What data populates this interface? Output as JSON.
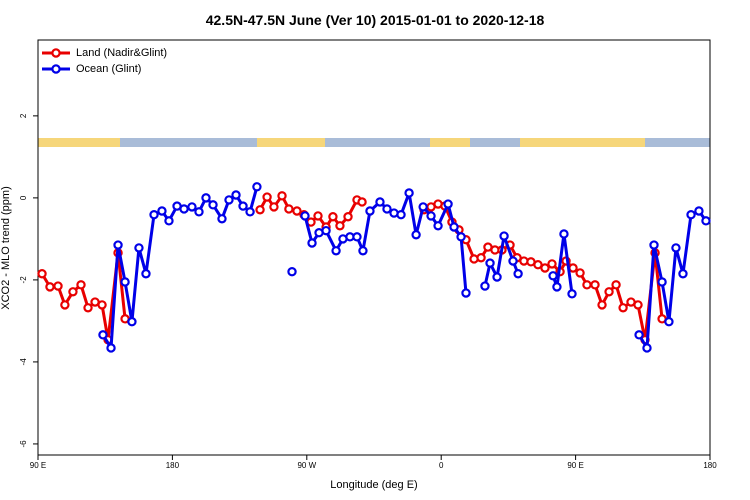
{
  "chart_data": {
    "type": "line",
    "title": "42.5N-47.5N June (Ver 10)   2015-01-01 to 2020-12-18",
    "xlabel": "Longitude (deg E)",
    "ylabel": "XCO2 - MLO trend (ppm)",
    "xlim": [
      90,
      540
    ],
    "ylim": [
      -6.27,
      3.85
    ],
    "xticks": [
      {
        "value": 90,
        "label": "90 E"
      },
      180,
      {
        "value": 270,
        "label": "90 W"
      },
      {
        "value": 360,
        "label": "0"
      },
      {
        "value": 450,
        "label": "90 E"
      },
      {
        "value": 540,
        "label": "180"
      }
    ],
    "yticks": [
      -6,
      -4,
      -2,
      0,
      2
    ],
    "legend": "top-left",
    "series": [
      {
        "name": "Land (Nadir&Glint)",
        "color": "#e80000",
        "x": [
          92.7,
          98,
          103.4,
          108,
          113.4,
          118.8,
          123.5,
          128.2,
          132.9,
          136.9,
          143.6,
          148.3,
          null,
          238.7,
          243.4,
          248,
          253.4,
          258,
          263.4,
          268.1,
          272.8,
          277.5,
          282.9,
          287.5,
          292.2,
          297.6,
          303.6,
          307,
          null,
          348.5,
          353.2,
          357.9,
          362.5,
          367.2,
          371.9,
          376.6,
          382,
          386.7,
          391.3,
          396,
          400.7,
          406.1,
          410.8,
          415.4,
          420.1,
          424.8,
          429.5,
          434.2,
          439.6,
          443.6,
          448.3,
          453,
          457.6,
          463,
          467.7,
          472.4,
          477.1,
          481.8,
          487.1,
          491.8,
          496.5,
          503.2,
          507.9
        ],
        "values": [
          -1.85,
          -2.17,
          -2.15,
          -2.61,
          -2.29,
          -2.12,
          -2.68,
          -2.54,
          -2.61,
          -3.46,
          -1.34,
          -2.95,
          null,
          -0.29,
          0.02,
          -0.22,
          0.05,
          -0.27,
          -0.32,
          -0.41,
          -0.59,
          -0.44,
          -0.71,
          -0.46,
          -0.68,
          -0.46,
          -0.05,
          -0.1,
          null,
          -0.29,
          -0.22,
          -0.15,
          -0.2,
          -0.59,
          -0.78,
          -1.02,
          -1.49,
          -1.46,
          -1.2,
          -1.27,
          -1.27,
          -1.15,
          -1.46,
          -1.54,
          -1.56,
          -1.63,
          -1.71,
          -1.61,
          -1.8,
          -1.54,
          -1.71,
          -1.83,
          -2.12,
          -2.12,
          -2.61,
          -2.29,
          -2.12,
          -2.68,
          -2.54,
          -2.61,
          -3.46,
          -1.34,
          -2.95
        ]
      },
      {
        "name": "Ocean (Glint)",
        "color": "#0000e8",
        "x": [
          133.5,
          138.9,
          143.6,
          148.3,
          152.9,
          157.6,
          162.3,
          167.7,
          173,
          177.7,
          183.1,
          187.8,
          193.1,
          197.8,
          202.5,
          207.2,
          213.2,
          217.9,
          222.6,
          227.3,
          232,
          236.6,
          null,
          260.1,
          null,
          268.8,
          273.5,
          278.2,
          282.9,
          289.6,
          294.2,
          298.9,
          303.6,
          307.6,
          312.3,
          319,
          323.7,
          328.4,
          333.1,
          338.5,
          343.2,
          347.9,
          353.2,
          357.9,
          364.6,
          368.6,
          373.3,
          376.6,
          null,
          389.3,
          392.7,
          397.4,
          402.1,
          408.1,
          411.5,
          null,
          434.9,
          437.5,
          442.2,
          447.6,
          null,
          492.5,
          497.8,
          502.5,
          507.9,
          512.5,
          517.2,
          521.9,
          527.3,
          532.6,
          537.3
        ],
        "values": [
          -3.34,
          -3.66,
          -1.15,
          -2.05,
          -3.02,
          -1.22,
          -1.85,
          -0.41,
          -0.32,
          -0.56,
          -0.2,
          -0.27,
          -0.22,
          -0.34,
          0,
          -0.17,
          -0.51,
          -0.05,
          0.07,
          -0.2,
          -0.34,
          0.27,
          null,
          -1.8,
          null,
          -0.44,
          -1.1,
          -0.85,
          -0.8,
          -1.29,
          -1.0,
          -0.95,
          -0.95,
          -1.29,
          -0.32,
          -0.1,
          -0.27,
          -0.37,
          -0.41,
          0.12,
          -0.9,
          -0.22,
          -0.44,
          -0.68,
          -0.15,
          -0.71,
          -0.95,
          -2.32,
          null,
          -2.15,
          -1.59,
          -1.93,
          -0.93,
          -1.54,
          -1.85,
          null,
          -1.9,
          -2.17,
          -0.88,
          -2.34,
          null,
          -3.34,
          -3.66,
          -1.15,
          -2.05,
          -3.02,
          -1.22,
          -1.85,
          -0.41,
          -0.32,
          -0.56
        ]
      }
    ]
  }
}
